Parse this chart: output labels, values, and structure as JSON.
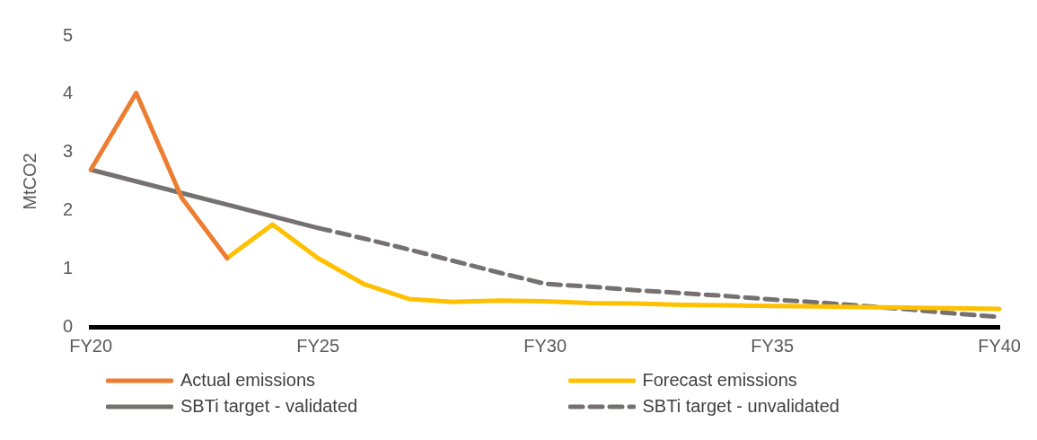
{
  "chart_data": {
    "type": "line",
    "ylabel": "MtCO2",
    "categories": [
      "FY20",
      null,
      null,
      null,
      null,
      "FY25",
      null,
      null,
      null,
      null,
      "FY30",
      null,
      null,
      null,
      null,
      "FY35",
      null,
      null,
      null,
      null,
      "FY40"
    ],
    "ylim": [
      0,
      5
    ],
    "yticks": [
      0,
      1,
      2,
      3,
      4,
      5
    ],
    "grid": false,
    "legend": "bottom",
    "marker": "none",
    "series": [
      {
        "name": "Actual emissions",
        "color": "#ed7d31",
        "values": [
          2.7,
          4.02,
          2.22,
          1.18,
          null,
          null,
          null,
          null,
          null,
          null,
          null,
          null,
          null,
          null,
          null,
          null,
          null,
          null,
          null,
          null,
          null
        ]
      },
      {
        "name": "Forecast emissions",
        "color": "#ffc000",
        "values": [
          null,
          null,
          null,
          1.18,
          1.76,
          1.18,
          0.74,
          0.48,
          0.43,
          0.45,
          0.44,
          0.41,
          0.4,
          0.38,
          0.37,
          0.36,
          0.35,
          0.34,
          0.33,
          0.32,
          0.31
        ]
      },
      {
        "name": "SBTi target - validated",
        "color": "#767171",
        "line_style": "solid",
        "values": [
          2.7,
          2.5,
          2.3,
          2.1,
          1.9,
          1.7,
          null,
          null,
          null,
          null,
          null,
          null,
          null,
          null,
          null,
          null,
          null,
          null,
          null,
          null,
          null
        ]
      },
      {
        "name": "SBTi target - unvalidated",
        "color": "#767171",
        "line_style": "dashed",
        "values": [
          null,
          null,
          null,
          null,
          null,
          1.7,
          1.52,
          1.33,
          1.13,
          0.93,
          0.74,
          0.69,
          0.63,
          0.58,
          0.53,
          0.47,
          0.42,
          0.36,
          0.3,
          0.23,
          0.17
        ]
      }
    ]
  }
}
